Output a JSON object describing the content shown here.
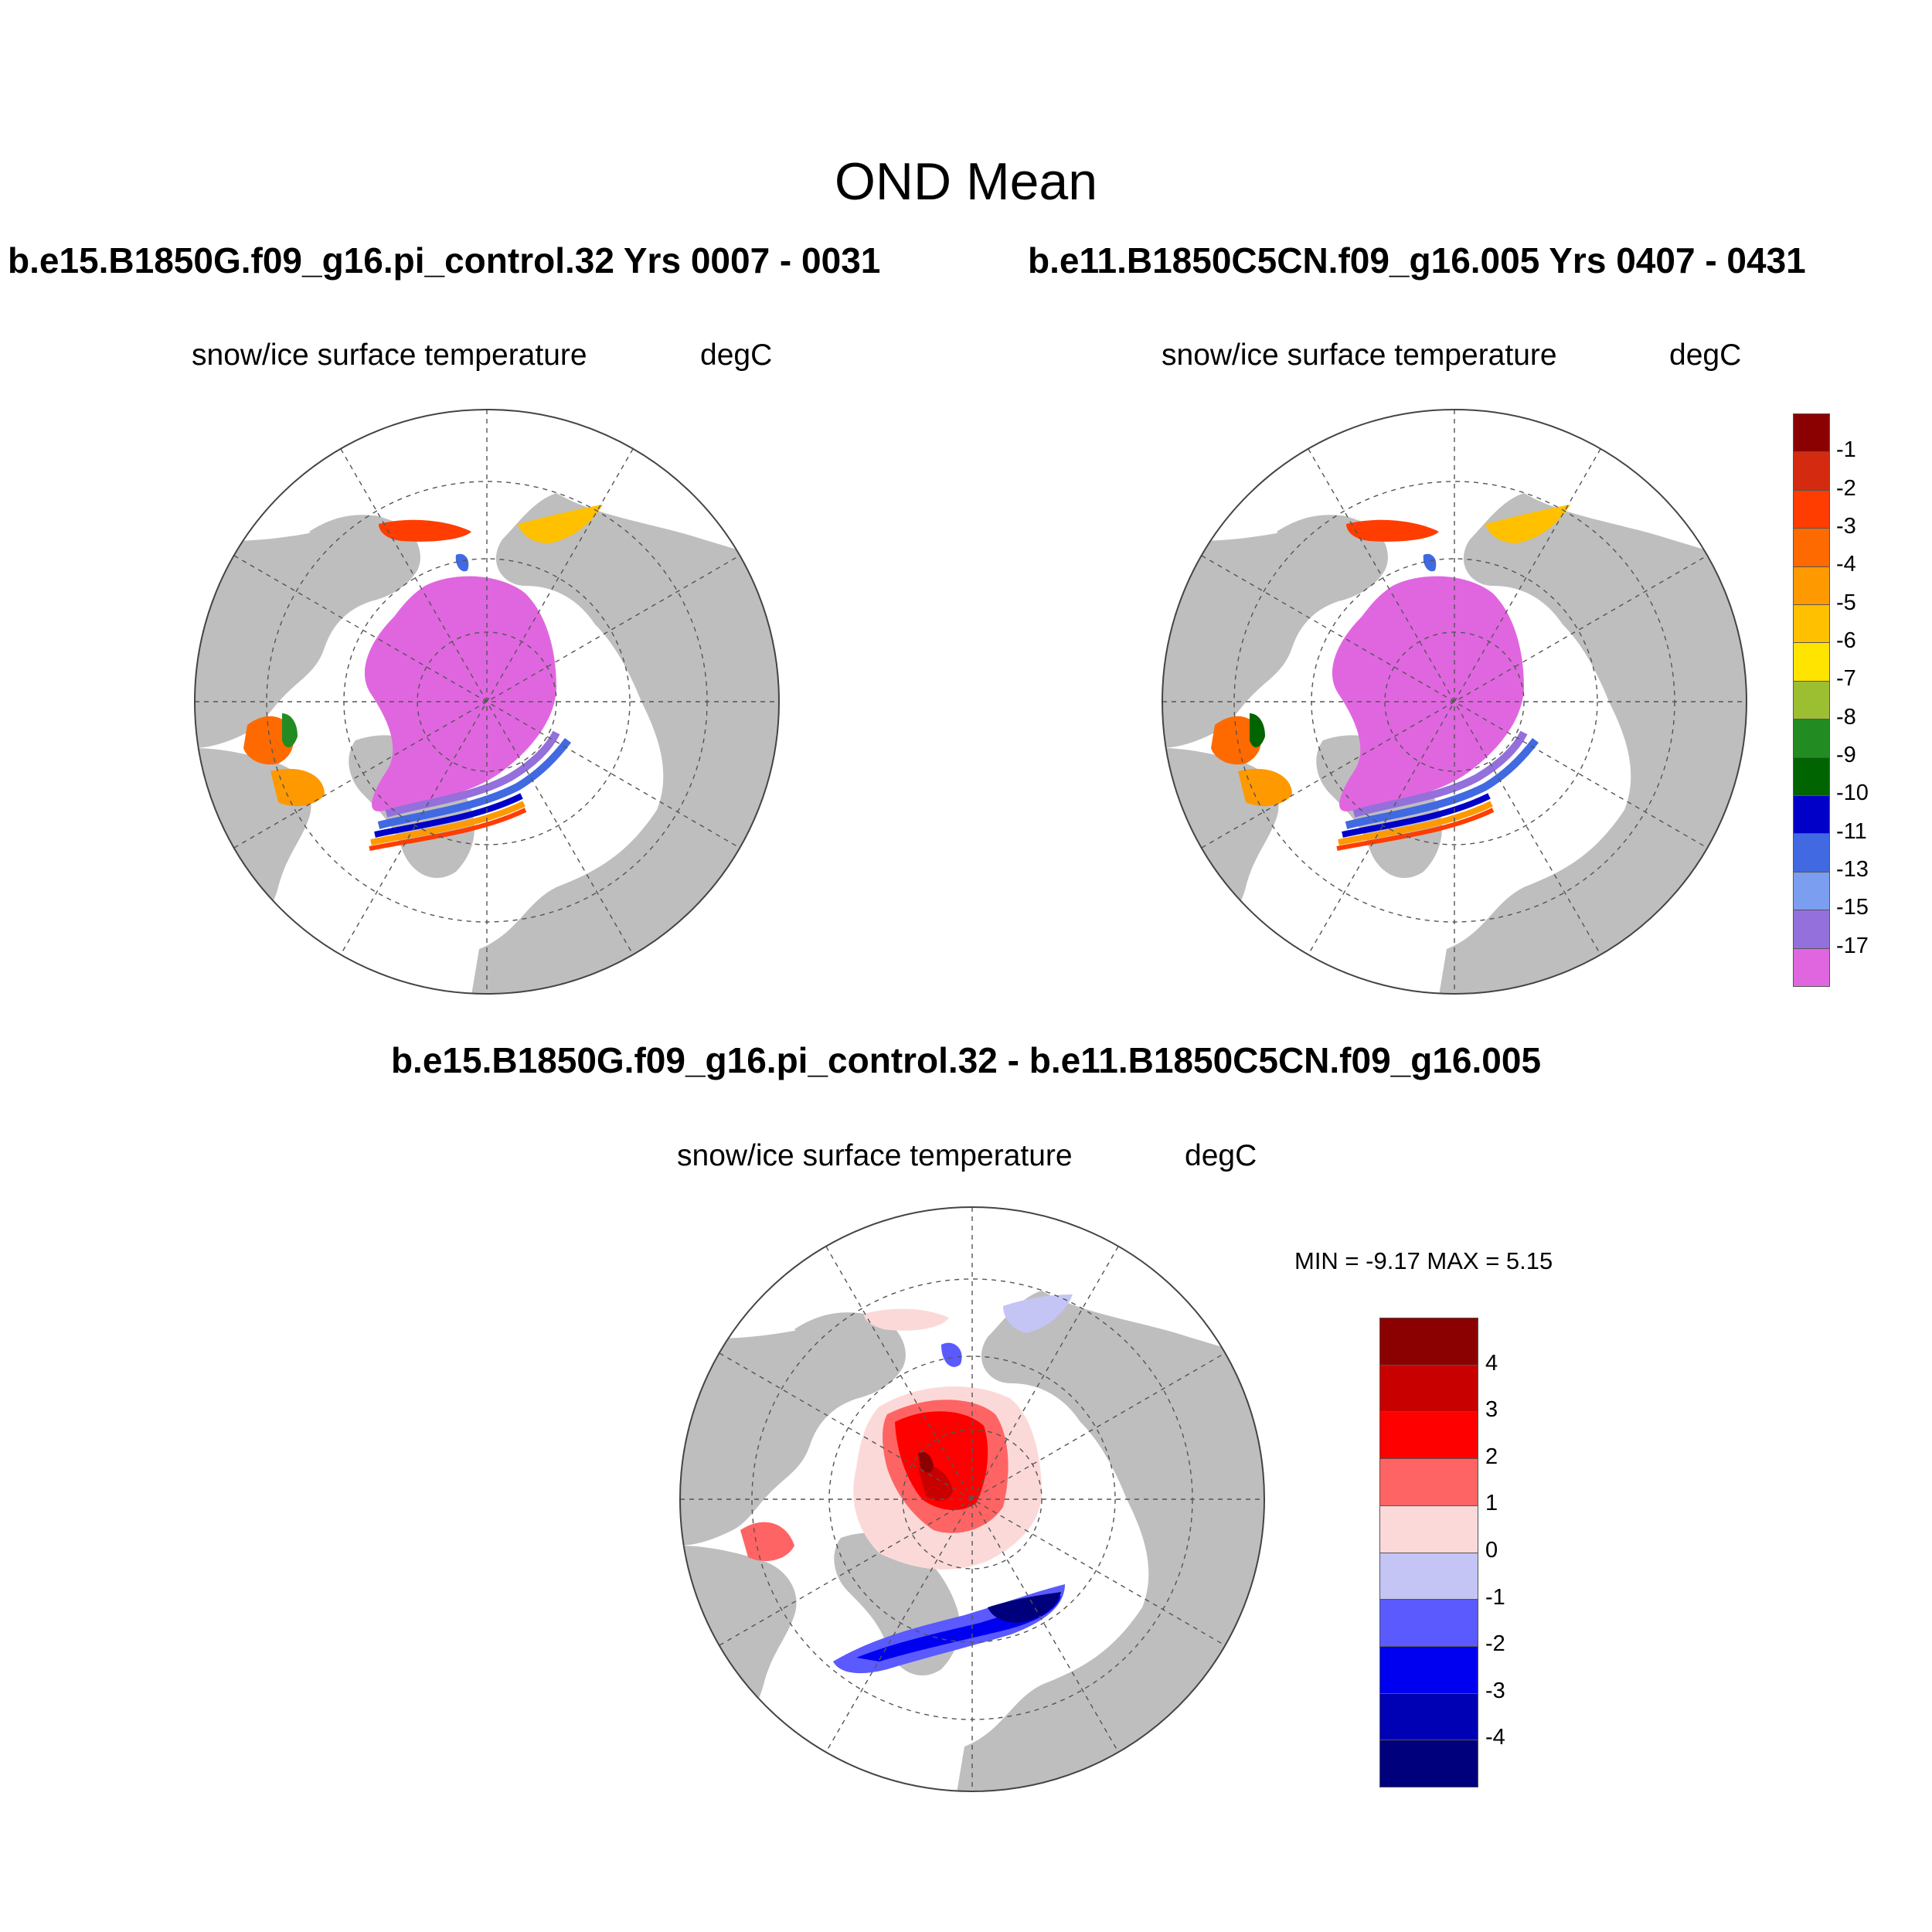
{
  "main_title": "OND Mean",
  "panels": [
    {
      "run_title": "b.e15.B1850G.f09_g16.pi_control.32  Yrs 0007 - 0031",
      "variable": "snow/ice surface temperature",
      "units": "degC"
    },
    {
      "run_title": "b.e11.B1850C5CN.f09_g16.005  Yrs 0407 - 0431",
      "variable": "snow/ice surface temperature",
      "units": "degC"
    }
  ],
  "difference": {
    "title": "b.e15.B1850G.f09_g16.pi_control.32 - b.e11.B1850C5CN.f09_g16.005",
    "variable": "snow/ice surface temperature",
    "units": "degC",
    "minmax_text": "MIN =  -9.17 MAX =   5.15"
  },
  "colorbar_temp": {
    "labels": [
      "-1",
      "-2",
      "-3",
      "-4",
      "-5",
      "-6",
      "-7",
      "-8",
      "-9",
      "-10",
      "-11",
      "-13",
      "-15",
      "-17"
    ],
    "colors": [
      "#8b0000",
      "#d42a10",
      "#ff3d00",
      "#ff6a00",
      "#ff9900",
      "#ffc000",
      "#ffe400",
      "#9cbf32",
      "#228b22",
      "#006400",
      "#0000c8",
      "#4169e1",
      "#7b9ef0",
      "#9370db",
      "#e066e0"
    ]
  },
  "colorbar_diff": {
    "labels": [
      "4",
      "3",
      "2",
      "1",
      "0",
      "-1",
      "-2",
      "-3",
      "-4"
    ],
    "colors": [
      "#8b0000",
      "#c80000",
      "#ff0000",
      "#ff6464",
      "#fcd9d9",
      "#c4c4f5",
      "#5a5aff",
      "#0000f0",
      "#0000b4",
      "#00007d"
    ]
  },
  "colors": {
    "land": "#bebebe",
    "ocean": "#ffffff",
    "arctic_ice": "#e066e0"
  }
}
